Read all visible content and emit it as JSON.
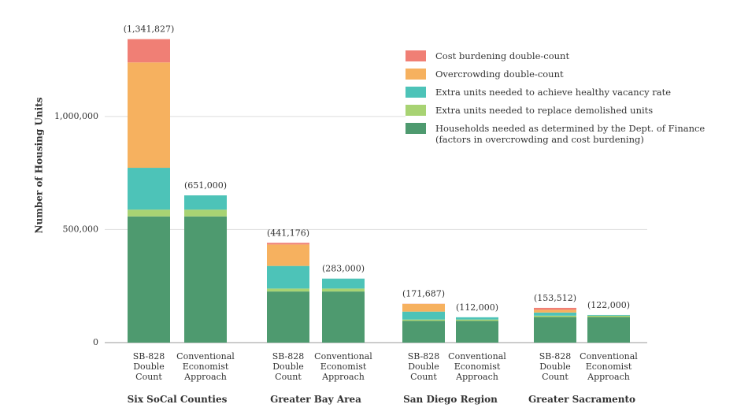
{
  "chart_data": {
    "type": "stacked-bar",
    "y_label": "Number of Housing Units",
    "categories": [
      "SB-828 Double Count",
      "Conventional Economist Approach",
      "SB-828 Double Count",
      "Conventional Economist Approach",
      "SB-828 Double Count",
      "Conventional Economist Approach",
      "SB-828 Double Count",
      "Conventional Economist Approach"
    ],
    "groups": [
      "Six SoCal Counties",
      "Greater Bay Area",
      "San Diego Region",
      "Greater Sacramento"
    ],
    "series": [
      {
        "name": "Households needed as determined by the Dept. of Finance (factors in overcrowding and cost burdening)",
        "color": "#4e9a6f",
        "values": [
          558000,
          558000,
          226000,
          226000,
          96000,
          96000,
          113000,
          113000
        ]
      },
      {
        "name": "Extra units needed to replace demolished units",
        "color": "#a8d373",
        "values": [
          30000,
          30000,
          13000,
          13000,
          6000,
          6000,
          6000,
          6000
        ]
      },
      {
        "name": "Extra units needed to achieve healthy vacancy rate",
        "color": "#4dc3b8",
        "values": [
          185000,
          63000,
          100000,
          44000,
          35000,
          10000,
          14000,
          3000
        ]
      },
      {
        "name": "Overcrowding double-count",
        "color": "#f6b15f",
        "values": [
          466000,
          0,
          95000,
          0,
          34000,
          0,
          12000,
          0
        ]
      },
      {
        "name": "Cost burdening double-count",
        "color": "#f07f75",
        "values": [
          102827,
          0,
          7176,
          0,
          687,
          0,
          8512,
          0
        ]
      }
    ],
    "totals": {
      "values": [
        1341827,
        651000,
        441176,
        283000,
        171687,
        112000,
        153512,
        122000
      ],
      "value_labels": [
        "(1,341,827)",
        "(651,000)",
        "(441,176)",
        "(283,000)",
        "(171,687)",
        "(112,000)",
        "(153,512)",
        "(122,000)"
      ]
    },
    "ylim": [
      0,
      1400000
    ],
    "yticks": [
      0,
      {
        "value": 500000,
        "label": "500,000"
      },
      {
        "value": 1000000,
        "label": "1,000,000"
      }
    ],
    "grid": true
  }
}
